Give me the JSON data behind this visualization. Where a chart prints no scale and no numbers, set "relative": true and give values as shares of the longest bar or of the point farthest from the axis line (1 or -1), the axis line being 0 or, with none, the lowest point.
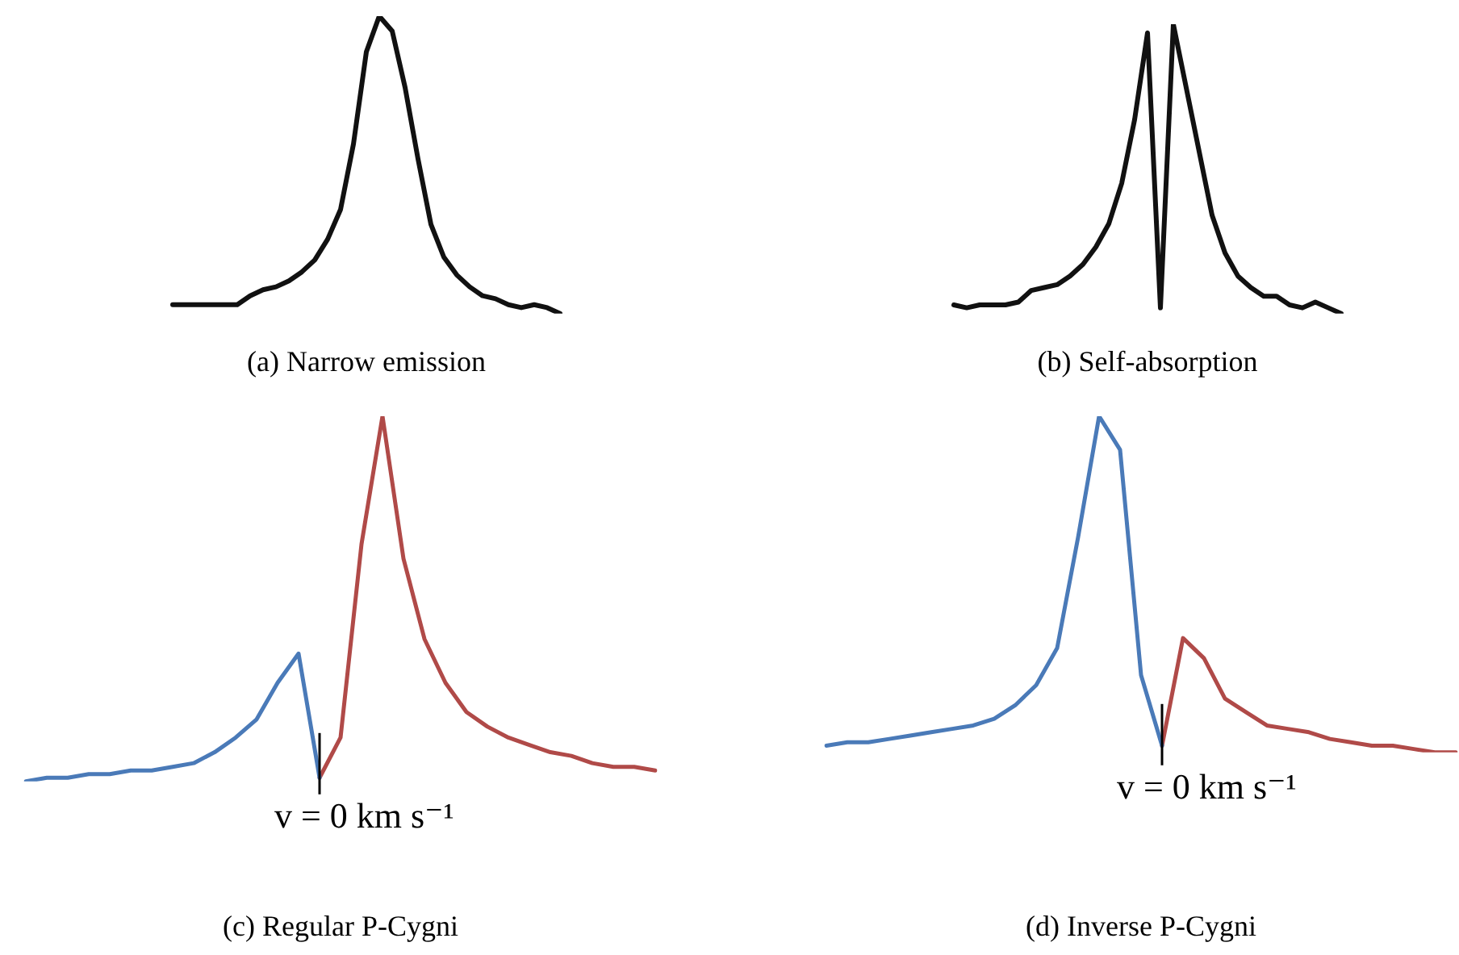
{
  "chart_data": [
    {
      "type": "line",
      "title": "(a) Narrow emission",
      "relative": true,
      "legend": false,
      "categories": [
        null,
        null,
        null,
        null,
        null,
        null,
        null,
        null,
        null,
        null,
        null,
        null,
        null,
        null,
        null,
        null,
        null,
        null,
        null,
        null,
        null,
        null,
        null,
        null,
        null,
        null,
        null,
        null,
        null,
        null,
        null
      ],
      "series": [
        {
          "color": "#111111",
          "values": [
            0.03,
            0.03,
            0.03,
            0.03,
            0.03,
            0.03,
            0.06,
            0.08,
            0.09,
            0.11,
            0.14,
            0.18,
            0.25,
            0.35,
            0.57,
            0.88,
            1,
            0.95,
            0.76,
            0.52,
            0.3,
            0.19,
            0.13,
            0.09,
            0.06,
            0.05,
            0.03,
            0.02,
            0.03,
            0.02,
            0
          ]
        }
      ]
    },
    {
      "type": "line",
      "title": "(b) Self-absorption",
      "relative": true,
      "legend": false,
      "categories": [
        null,
        null,
        null,
        null,
        null,
        null,
        null,
        null,
        null,
        null,
        null,
        null,
        null,
        null,
        null,
        null,
        null,
        null,
        null,
        null,
        null,
        null,
        null,
        null,
        null,
        null,
        null,
        null,
        null,
        null,
        null
      ],
      "series": [
        {
          "color": "#111111",
          "values": [
            0.03,
            0.02,
            0.03,
            0.03,
            0.03,
            0.04,
            0.08,
            0.09,
            0.1,
            0.13,
            0.17,
            0.23,
            0.31,
            0.45,
            0.67,
            0.97,
            0.02,
            1,
            0.78,
            0.56,
            0.34,
            0.21,
            0.13,
            0.09,
            0.06,
            0.06,
            0.03,
            0.02,
            0.04,
            0.02,
            0
          ]
        }
      ]
    },
    {
      "type": "line",
      "title": "(c) Regular P-Cygni",
      "relative": true,
      "legend": false,
      "annotations": [
        "v = 0 km s⁻¹"
      ],
      "categories": [
        null,
        null,
        null,
        null,
        null,
        null,
        null,
        null,
        null,
        null,
        null,
        null,
        null,
        null,
        null,
        null,
        null,
        null,
        null,
        null,
        null,
        null,
        null,
        null,
        null,
        null,
        null,
        null,
        null,
        null,
        null
      ],
      "series": [
        {
          "color": "#4a7ab8",
          "values": [
            0,
            0.01,
            0.01,
            0.02,
            0.02,
            0.03,
            0.03,
            0.04,
            0.05,
            0.08,
            0.12,
            0.17,
            0.27,
            0.35,
            0.01,
            null,
            null,
            null,
            null,
            null,
            null,
            null,
            null,
            null,
            null,
            null,
            null,
            null,
            null,
            null,
            null
          ]
        },
        {
          "color": "#b04a48",
          "values": [
            null,
            null,
            null,
            null,
            null,
            null,
            null,
            null,
            null,
            null,
            null,
            null,
            null,
            null,
            0.01,
            0.12,
            0.65,
            1,
            0.61,
            0.39,
            0.27,
            0.19,
            0.15,
            0.12,
            0.1,
            0.08,
            0.07,
            0.05,
            0.04,
            0.04,
            0.03
          ]
        }
      ]
    },
    {
      "type": "line",
      "title": "(d) Inverse P-Cygni",
      "relative": true,
      "legend": false,
      "annotations": [
        "v = 0 km s⁻¹"
      ],
      "categories": [
        null,
        null,
        null,
        null,
        null,
        null,
        null,
        null,
        null,
        null,
        null,
        null,
        null,
        null,
        null,
        null,
        null,
        null,
        null,
        null,
        null,
        null,
        null,
        null,
        null,
        null,
        null,
        null,
        null,
        null,
        null
      ],
      "series": [
        {
          "color": "#4a7ab8",
          "values": [
            0.02,
            0.03,
            0.03,
            0.04,
            0.05,
            0.06,
            0.07,
            0.08,
            0.1,
            0.14,
            0.2,
            0.31,
            0.64,
            1,
            0.9,
            0.23,
            0.02,
            null,
            null,
            null,
            null,
            null,
            null,
            null,
            null,
            null,
            null,
            null,
            null,
            null,
            null
          ]
        },
        {
          "color": "#b04a48",
          "values": [
            null,
            null,
            null,
            null,
            null,
            null,
            null,
            null,
            null,
            null,
            null,
            null,
            null,
            null,
            null,
            null,
            0.02,
            0.34,
            0.28,
            0.16,
            0.12,
            0.08,
            0.07,
            0.06,
            0.04,
            0.03,
            0.02,
            0.02,
            0.01,
            0,
            0
          ]
        }
      ]
    }
  ]
}
